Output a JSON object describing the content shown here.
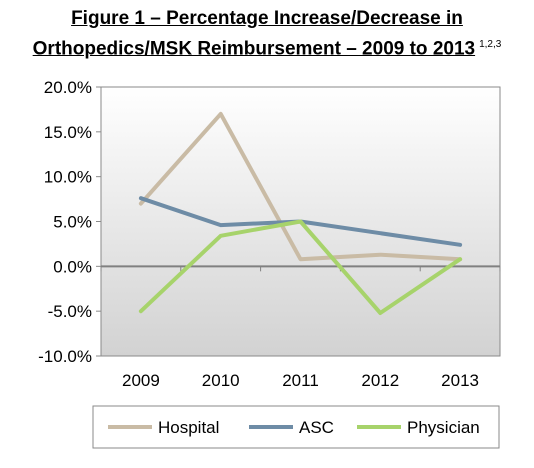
{
  "title": {
    "line1": "Figure 1 – Percentage Increase/Decrease in",
    "line2": "Orthopedics/MSK Reimbursement – 2009 to 2013",
    "footnote": "1,2,3"
  },
  "chart_data": {
    "type": "line",
    "title": "Figure 1 – Percentage Increase/Decrease in Orthopedics/MSK Reimbursement – 2009 to 2013",
    "xlabel": "",
    "ylabel": "",
    "categories": [
      "2009",
      "2010",
      "2011",
      "2012",
      "2013"
    ],
    "ylim": [
      -10,
      20
    ],
    "yticks": [
      -10,
      -5,
      0,
      5,
      10,
      15,
      20
    ],
    "ytick_labels": [
      "-10.0%",
      "-5.0%",
      "0.0%",
      "5.0%",
      "10.0%",
      "15.0%",
      "20.0%"
    ],
    "grid": false,
    "legend_position": "bottom",
    "series": [
      {
        "name": "Hospital",
        "color": "#c9bba5",
        "values": [
          7.0,
          17.0,
          0.8,
          1.3,
          0.8
        ]
      },
      {
        "name": "ASC",
        "color": "#6e8ca6",
        "values": [
          7.6,
          4.6,
          5.0,
          3.7,
          2.4
        ]
      },
      {
        "name": "Physician",
        "color": "#a7d36b",
        "values": [
          -5.0,
          3.4,
          5.0,
          -5.2,
          0.8
        ]
      }
    ]
  }
}
